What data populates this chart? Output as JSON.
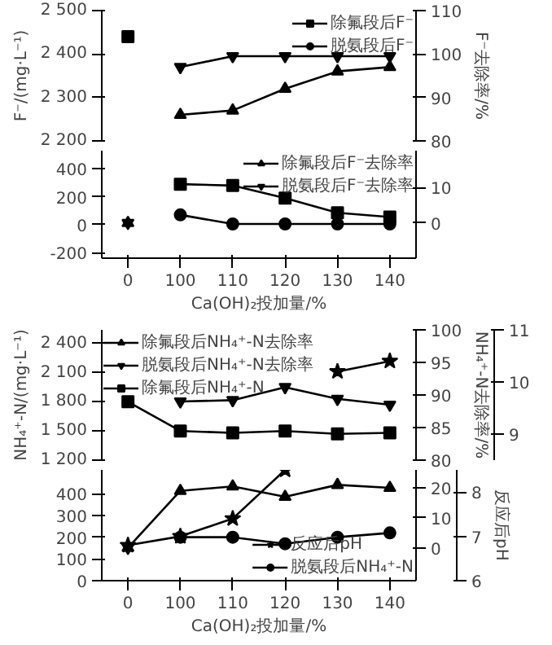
{
  "chart_data": [
    {
      "type": "line",
      "categories": [
        "0",
        "100",
        "110",
        "120",
        "130",
        "140"
      ],
      "ylabel": "F⁻/(mg·L⁻¹)",
      "y2label": "F⁻去除率/%",
      "ylim": [
        2200,
        2500
      ],
      "yticks": [
        {
          "value": 2200,
          "label": "2 200"
        },
        {
          "value": 2300,
          "label": "2 300"
        },
        {
          "value": 2400,
          "label": "2 400"
        },
        {
          "value": 2500,
          "label": "2 500"
        }
      ],
      "y2lim": [
        80,
        110
      ],
      "y2ticks": [
        80,
        90,
        100,
        110
      ],
      "tick_labels": "y",
      "legend": "top right",
      "series": [
        {
          "name": "除氟段后F⁻",
          "color": "#000000",
          "marker": "square",
          "values": [
            2440,
            null,
            null,
            null,
            null,
            null
          ]
        },
        {
          "name": "脱氨段后F⁻",
          "color": "#000000",
          "marker": "circle",
          "values": [
            null,
            null,
            null,
            null,
            null,
            null
          ]
        },
        {
          "color": "#000000",
          "marker": "triangle",
          "axis": "y2",
          "values": [
            null,
            86,
            87,
            92,
            96,
            97
          ]
        },
        {
          "color": "#000000",
          "marker": "triangle-down",
          "axis": "y2",
          "values": [
            null,
            97,
            99.5,
            99.5,
            99.5,
            99.5
          ]
        }
      ]
    },
    {
      "type": "line",
      "categories": [
        "0",
        "100",
        "110",
        "120",
        "130",
        "140"
      ],
      "xlabel": "Ca(OH)₂投加量/%",
      "ylim": [
        -240,
        530
      ],
      "yticks": [
        -200,
        0,
        200,
        400
      ],
      "y2lim": [
        -10,
        20.5
      ],
      "y2ticks": [
        0,
        10
      ],
      "legend": "top right",
      "series": [
        {
          "color": "#000000",
          "marker": "square",
          "values": [
            null,
            290,
            280,
            190,
            85,
            55
          ]
        },
        {
          "color": "#000000",
          "marker": "circle",
          "values": [
            null,
            70,
            5,
            5,
            5,
            5
          ]
        },
        {
          "name": "除氟段后F⁻去除率",
          "color": "#000000",
          "marker": "triangle",
          "axis": "y2",
          "values": [
            0,
            null,
            null,
            null,
            null,
            null
          ]
        },
        {
          "name": "脱氨段后F⁻去除率",
          "color": "#000000",
          "marker": "triangle-down",
          "axis": "y2",
          "values": [
            0,
            null,
            null,
            null,
            null,
            null
          ]
        }
      ]
    },
    {
      "type": "line",
      "categories": [
        "0",
        "100",
        "110",
        "120",
        "130",
        "140"
      ],
      "ylabel": "NH₄⁺-N/(mg·L⁻¹)",
      "y2label": "NH₄⁺-N去除率/%",
      "ylim": [
        1200,
        2540
      ],
      "yticks": [
        {
          "value": 1200,
          "label": "1 200"
        },
        {
          "value": 1500,
          "label": "1 500"
        },
        {
          "value": 1800,
          "label": "1 800"
        },
        {
          "value": 2100,
          "label": "2 100"
        },
        {
          "value": 2400,
          "label": "2 400"
        }
      ],
      "y2lim": [
        80,
        100
      ],
      "y2ticks": [
        80,
        85,
        90,
        95,
        100
      ],
      "y3lim": [
        8.5,
        11
      ],
      "y3ticks": [
        9,
        10,
        11
      ],
      "tick_labels": "y",
      "legend": "top left",
      "series": [
        {
          "name": "除氟段后NH₄⁺-N去除率",
          "color": "#000000",
          "marker": "triangle",
          "axis": "y2",
          "values": [
            null,
            null,
            null,
            null,
            null,
            null
          ]
        },
        {
          "name": "脱氨段后NH₄⁺-N去除率",
          "color": "#000000",
          "marker": "triangle-down",
          "axis": "y2",
          "values": [
            null,
            89,
            89.2,
            91.2,
            89.4,
            88.5
          ]
        },
        {
          "name": "除氟段后NH₄⁺-N",
          "color": "#000000",
          "marker": "square",
          "values": [
            1800,
            1500,
            1480,
            1500,
            1470,
            1480
          ]
        },
        {
          "color": "#000000",
          "marker": "star",
          "axis": "y3",
          "values": [
            null,
            null,
            null,
            null,
            10.2,
            10.4
          ]
        }
      ]
    },
    {
      "type": "line",
      "categories": [
        "0",
        "100",
        "110",
        "120",
        "130",
        "140"
      ],
      "xlabel": "Ca(OH)₂投加量/%",
      "y3label": "反应后pH",
      "ylim": [
        0,
        510
      ],
      "yticks": [
        0,
        100,
        200,
        300,
        400
      ],
      "y2lim": [
        -11,
        26
      ],
      "y2ticks": [
        0,
        10,
        20
      ],
      "y3lim": [
        6,
        8.5
      ],
      "y3ticks": [
        6,
        7,
        8
      ],
      "legend": "bottom right",
      "series": [
        {
          "color": "#000000",
          "marker": "triangle",
          "axis": "y2",
          "values": [
            0,
            19,
            20.5,
            17,
            21,
            20
          ]
        },
        {
          "color": "#000000",
          "marker": "triangle-down",
          "axis": "y2",
          "values": [
            0,
            null,
            null,
            null,
            null,
            null
          ]
        },
        {
          "name": "反应后pH",
          "color": "#000000",
          "marker": "star",
          "axis": "y3",
          "values": [
            6.8,
            7.0,
            7.4,
            8.5,
            null,
            null
          ]
        },
        {
          "name": "脱氨段后NH₄⁺-N",
          "color": "#000000",
          "marker": "circle",
          "values": [
            null,
            200,
            200,
            170,
            200,
            220
          ]
        }
      ]
    }
  ]
}
